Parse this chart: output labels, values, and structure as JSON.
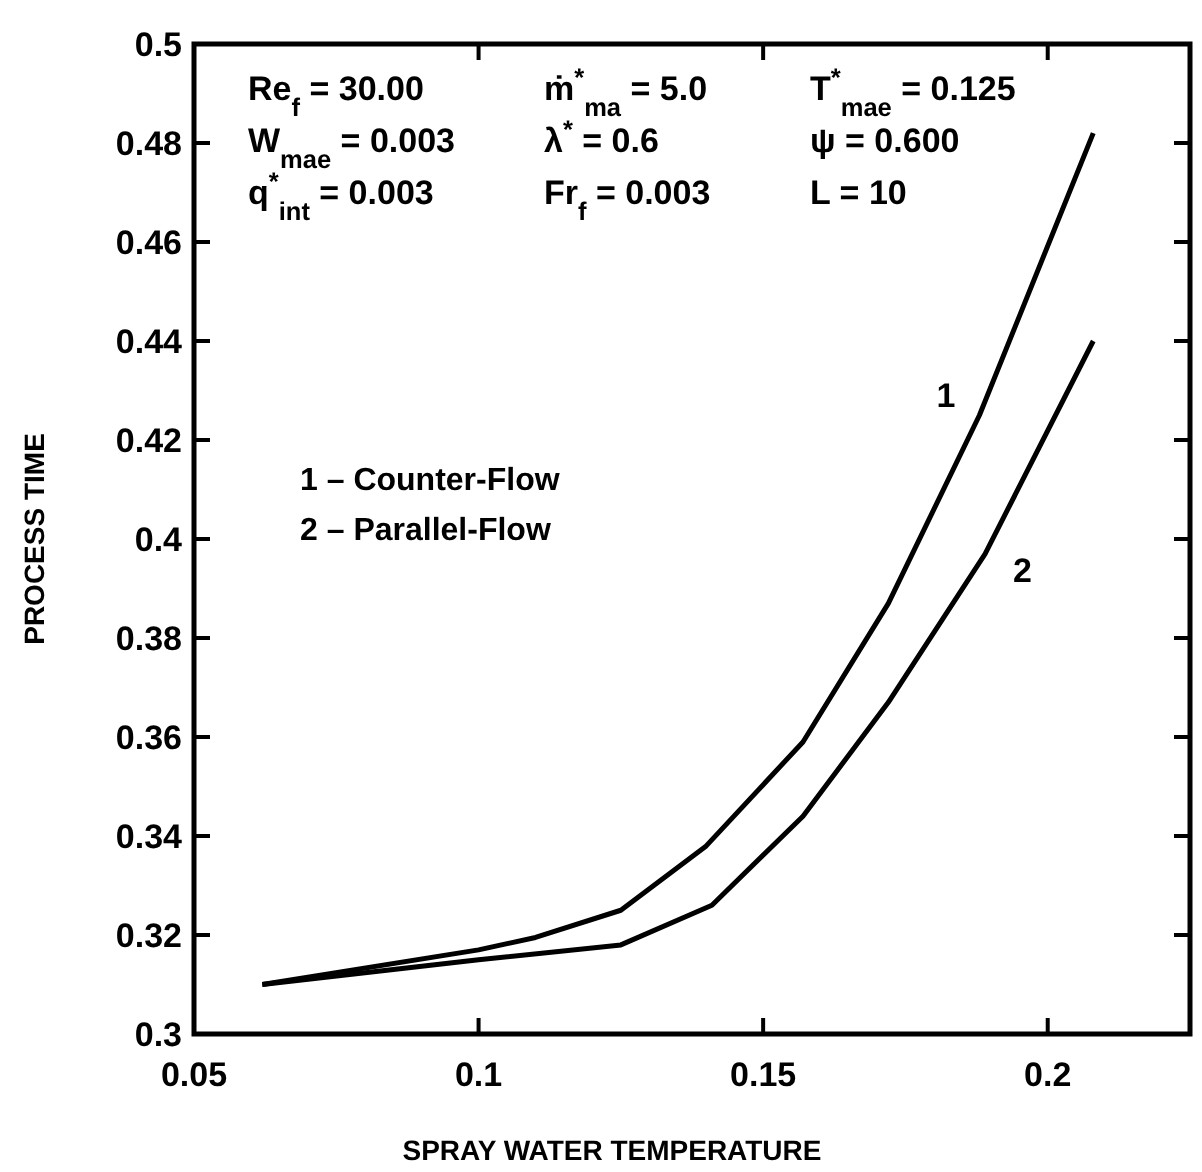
{
  "chart_data": {
    "type": "line",
    "xlabel": "SPRAY WATER TEMPERATURE",
    "ylabel": "PROCESS TIME",
    "xlim": [
      0.05,
      0.225
    ],
    "ylim": [
      0.3,
      0.5
    ],
    "xticks": [
      0.05,
      0.1,
      0.15,
      0.2
    ],
    "yticks": [
      0.3,
      0.32,
      0.34,
      0.36,
      0.38,
      0.4,
      0.42,
      0.44,
      0.46,
      0.48,
      0.5
    ],
    "grid": false,
    "marker": "none",
    "line_style": "solid",
    "series": [
      {
        "name": "1",
        "color": "#000000",
        "x": [
          0.062,
          0.1,
          0.11,
          0.125,
          0.14,
          0.157,
          0.172,
          0.188,
          0.208
        ],
        "values": [
          0.31,
          0.317,
          0.3195,
          0.325,
          0.338,
          0.359,
          0.387,
          0.425,
          0.482
        ]
      },
      {
        "name": "2",
        "color": "#000000",
        "x": [
          0.062,
          0.1,
          0.125,
          0.141,
          0.157,
          0.172,
          0.189,
          0.208
        ],
        "values": [
          0.31,
          0.315,
          0.318,
          0.326,
          0.344,
          0.367,
          0.397,
          0.44
        ]
      }
    ],
    "annotations": [
      "Re$_{f}$ = 30.00",
      "ṁ$^{*}$$_{ma}$ = 5.0",
      "T$^{*}$$_{mae}$ = 0.125",
      "W$_{mae}$ = 0.003",
      "λ$^{*}$ = 0.6",
      "ψ = 0.600",
      "q$^{*}$$_{int}$ = 0.003",
      "Fr$_{f}$ = 0.003",
      "L = 10",
      "1 – Counter-Flow",
      "2 – Parallel-Flow"
    ]
  }
}
